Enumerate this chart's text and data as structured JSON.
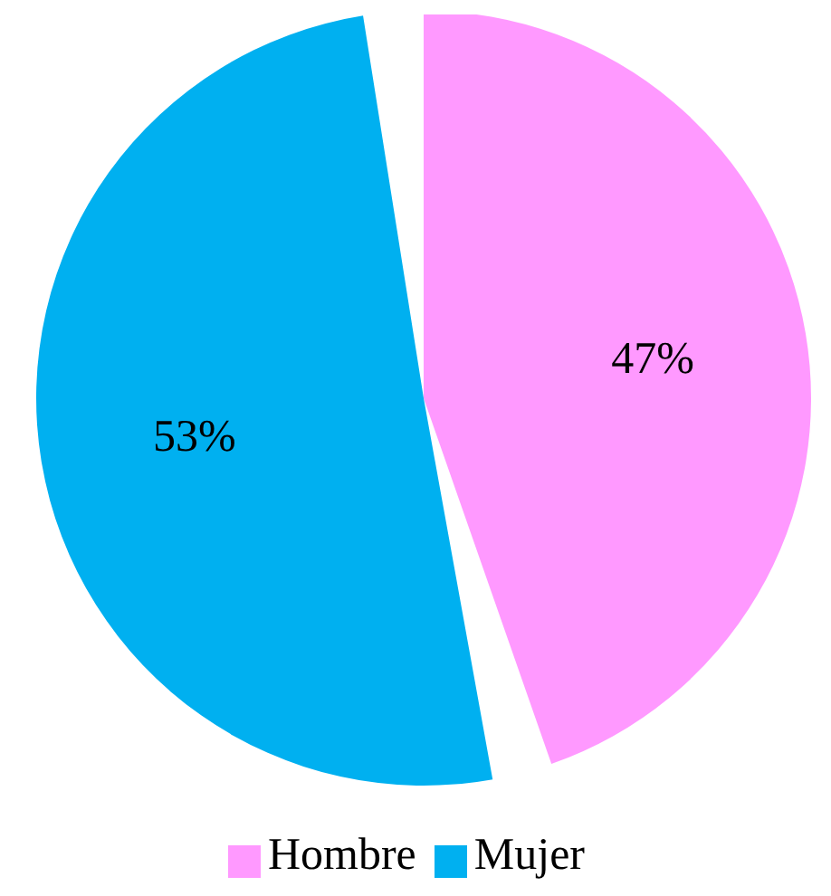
{
  "chart_data": {
    "type": "pie",
    "categories": [
      "Hombre",
      "Mujer"
    ],
    "values": [
      47,
      53
    ],
    "colors": [
      "#ff99ff",
      "#00b0f0"
    ],
    "value_labels": [
      "47%",
      "53%"
    ],
    "legend": "bottom"
  }
}
